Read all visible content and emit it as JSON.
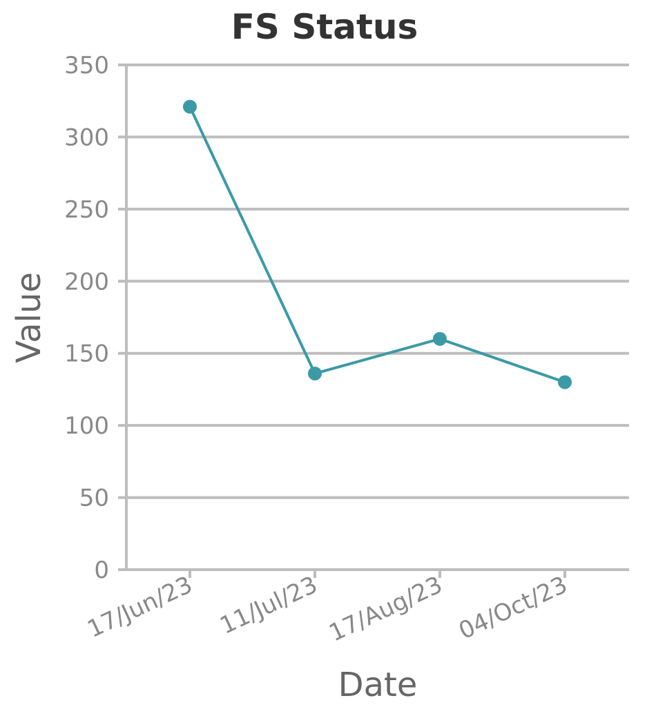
{
  "chart_data": {
    "type": "line",
    "title": "FS Status",
    "xlabel": "Date",
    "ylabel": "Value",
    "categories": [
      "17/Jun/23",
      "11/Jul/23",
      "17/Aug/23",
      "04/Oct/23"
    ],
    "series": [
      {
        "values": [
          321,
          136,
          160,
          130
        ]
      }
    ],
    "ylim": [
      0,
      350
    ],
    "yticks": [
      0,
      50,
      100,
      150,
      200,
      250,
      300,
      350
    ],
    "grid": true,
    "line_color": "#3b9aa6"
  }
}
